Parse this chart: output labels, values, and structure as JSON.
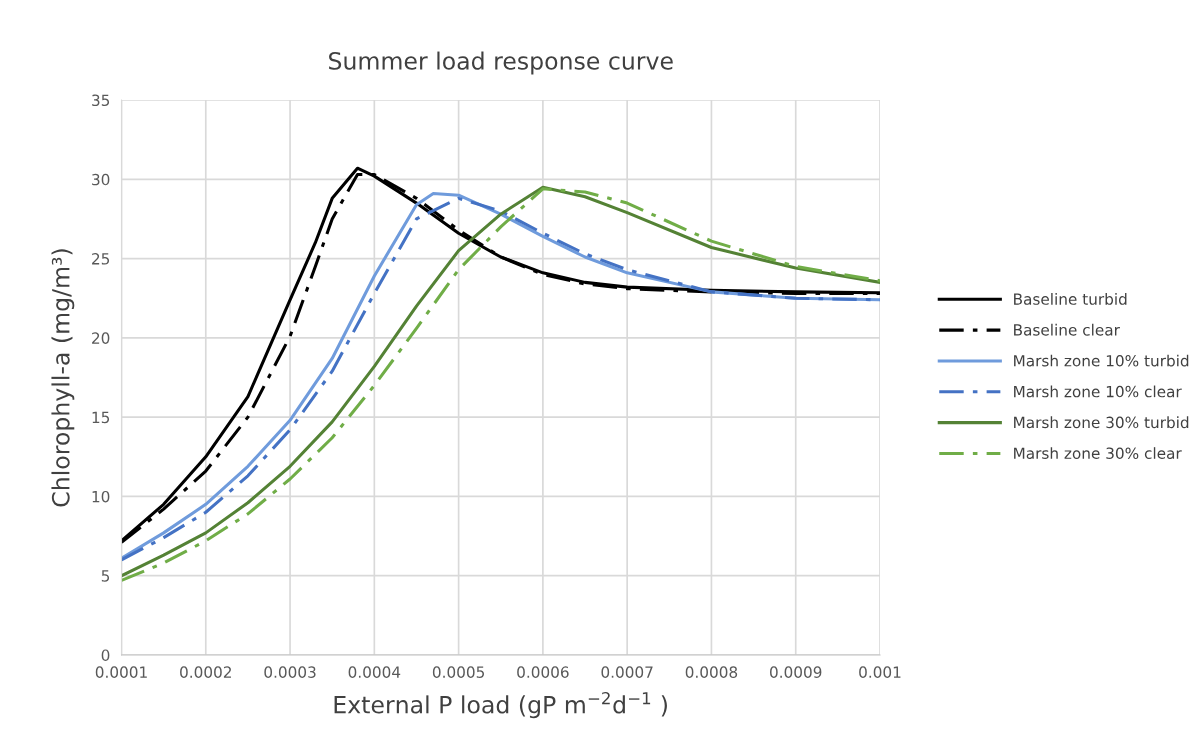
{
  "chart_data": {
    "type": "line",
    "title": "Summer load response curve",
    "xlabel": "External P load (gP m$^{−2}$d$^{−1}$ )",
    "ylabel": "Chlorophyll-a (mg/m³)",
    "xlim": [
      0.0001,
      0.001
    ],
    "xticks": [
      0.0001,
      0.0002,
      0.0003,
      0.0004,
      0.0005,
      0.0006,
      0.0007,
      0.0008,
      0.0009,
      0.001
    ],
    "ylim": [
      0,
      35
    ],
    "yticks": [
      0,
      5,
      10,
      15,
      20,
      25,
      30,
      35
    ],
    "grid": true,
    "legend": "right",
    "marker": "none",
    "series": [
      {
        "name": "Baseline turbid",
        "color": "#000000",
        "line_style": "solid",
        "x": [
          0.0001,
          0.00015,
          0.0002,
          0.00025,
          0.0003,
          0.00033,
          0.00035,
          0.00038,
          0.0004,
          0.00045,
          0.0005,
          0.00055,
          0.0006,
          0.00065,
          0.0007,
          0.0008,
          0.0009,
          0.001
        ],
        "values": [
          7.2,
          9.5,
          12.5,
          16.3,
          22.4,
          26.0,
          28.8,
          30.7,
          30.2,
          28.5,
          26.6,
          25.1,
          24.1,
          23.5,
          23.2,
          23.0,
          22.9,
          22.85
        ]
      },
      {
        "name": "Baseline clear",
        "color": "#000000",
        "line_style": "dashed",
        "x": [
          0.0001,
          0.00015,
          0.0002,
          0.00025,
          0.0003,
          0.00033,
          0.00035,
          0.00038,
          0.0004,
          0.00045,
          0.0005,
          0.00055,
          0.0006,
          0.00065,
          0.0007,
          0.0008,
          0.0009,
          0.001
        ],
        "values": [
          7.1,
          9.2,
          11.6,
          15.0,
          20.1,
          24.5,
          27.5,
          30.3,
          30.3,
          28.8,
          26.8,
          25.1,
          24.0,
          23.4,
          23.1,
          22.9,
          22.8,
          22.8
        ]
      },
      {
        "name": "Marsh zone 10% turbid",
        "color": "#6f9bdc",
        "line_style": "solid",
        "x": [
          0.0001,
          0.00015,
          0.0002,
          0.00025,
          0.0003,
          0.00035,
          0.0004,
          0.00045,
          0.00047,
          0.0005,
          0.00055,
          0.0006,
          0.00065,
          0.0007,
          0.0008,
          0.0009,
          0.001
        ],
        "values": [
          6.1,
          7.7,
          9.5,
          11.9,
          14.8,
          18.7,
          23.9,
          28.4,
          29.1,
          29.0,
          27.8,
          26.4,
          25.1,
          24.1,
          22.9,
          22.5,
          22.4
        ]
      },
      {
        "name": "Marsh zone 10% clear",
        "color": "#4472c4",
        "line_style": "dashed",
        "x": [
          0.0001,
          0.00015,
          0.0002,
          0.00025,
          0.0003,
          0.00035,
          0.0004,
          0.00045,
          0.0005,
          0.00055,
          0.0006,
          0.00065,
          0.0007,
          0.0008,
          0.0009,
          0.001
        ],
        "values": [
          6.0,
          7.4,
          9.0,
          11.3,
          14.2,
          17.9,
          22.8,
          27.5,
          28.8,
          28.0,
          26.6,
          25.3,
          24.3,
          22.9,
          22.5,
          22.4
        ]
      },
      {
        "name": "Marsh zone 30% turbid",
        "color": "#548235",
        "line_style": "solid",
        "x": [
          0.0001,
          0.00015,
          0.0002,
          0.00025,
          0.0003,
          0.00035,
          0.0004,
          0.00045,
          0.0005,
          0.00055,
          0.0006,
          0.00065,
          0.0007,
          0.0008,
          0.0009,
          0.001
        ],
        "values": [
          5.0,
          6.3,
          7.7,
          9.6,
          11.9,
          14.7,
          18.2,
          22.0,
          25.5,
          27.8,
          29.5,
          28.9,
          27.9,
          25.7,
          24.4,
          23.5
        ]
      },
      {
        "name": "Marsh zone 30% clear",
        "color": "#70ad47",
        "line_style": "dashed",
        "x": [
          0.0001,
          0.00015,
          0.0002,
          0.00025,
          0.0003,
          0.00035,
          0.0004,
          0.00045,
          0.0005,
          0.00055,
          0.0006,
          0.00065,
          0.0007,
          0.0008,
          0.0009,
          0.001
        ],
        "values": [
          4.7,
          5.8,
          7.2,
          8.9,
          11.1,
          13.7,
          17.0,
          20.6,
          24.3,
          27.0,
          29.4,
          29.2,
          28.5,
          26.1,
          24.5,
          23.6
        ]
      }
    ]
  }
}
